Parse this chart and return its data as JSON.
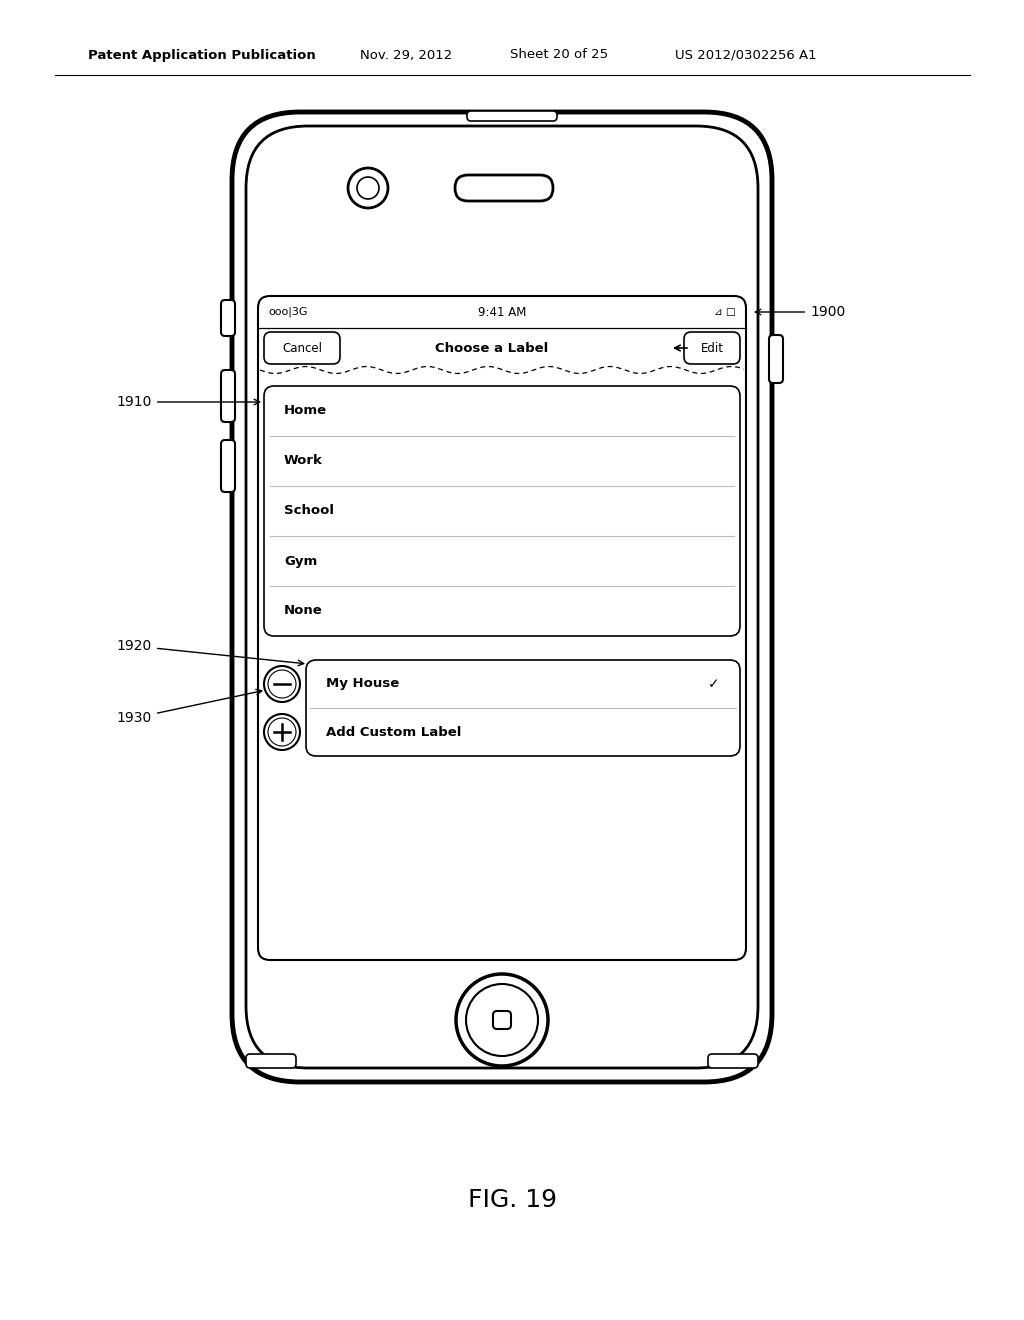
{
  "bg_color": "#ffffff",
  "line_color": "#000000",
  "header_text": "Patent Application Publication",
  "header_date": "Nov. 29, 2012",
  "header_sheet": "Sheet 20 of 25",
  "header_patent": "US 2012/0302256 A1",
  "figure_label": "FIG. 19",
  "list_items": [
    "Home",
    "Work",
    "School",
    "Gym",
    "None"
  ],
  "custom_item1": "My House",
  "custom_item2": "Add Custom Label",
  "annotation_1900": "1900",
  "annotation_1910": "1910",
  "annotation_1920": "1920",
  "annotation_1930": "1930",
  "nav_cancel": "Cancel",
  "nav_title": "Choose a Label",
  "nav_edit": "Edit",
  "status_left": "ooo|3G",
  "status_center": "9:41 AM"
}
